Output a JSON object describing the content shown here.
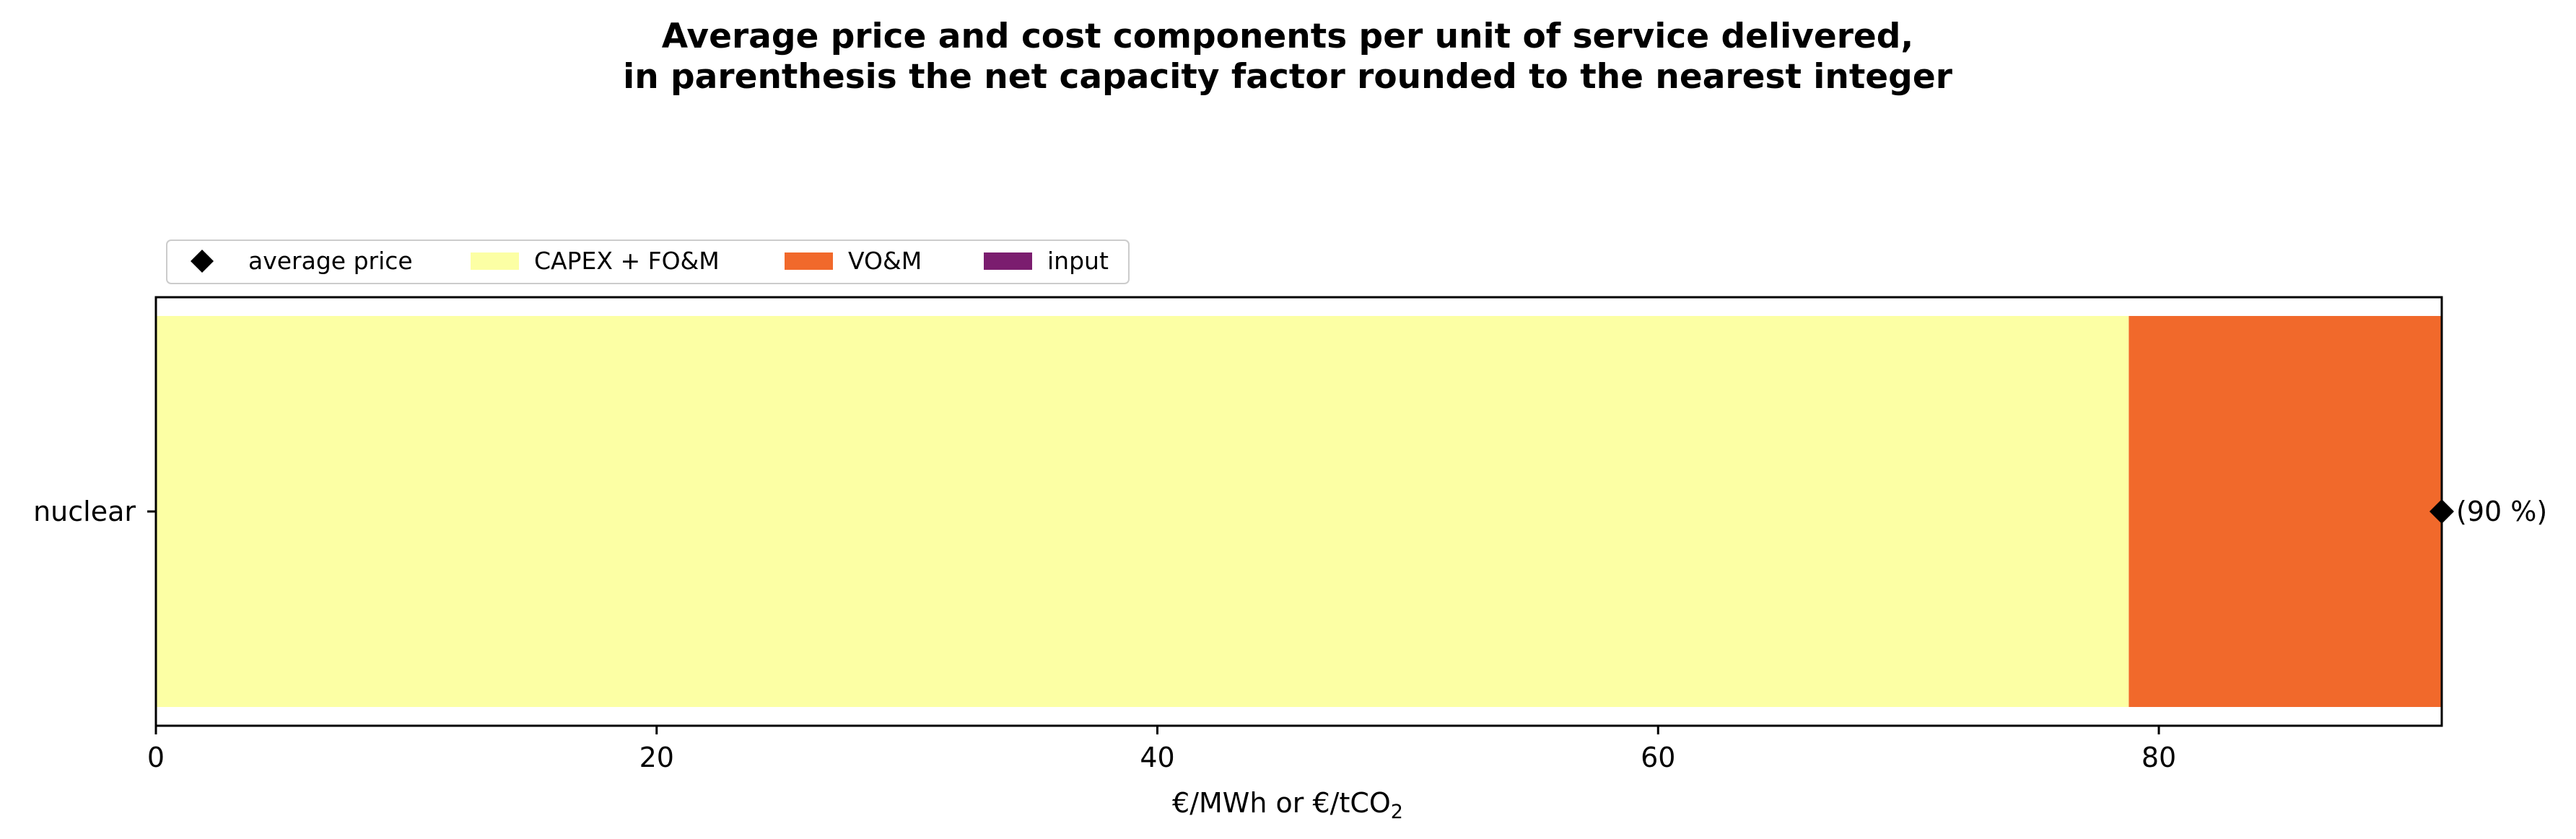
{
  "chart_data": {
    "type": "bar",
    "orientation": "horizontal",
    "stacked": true,
    "title": [
      "Average price and cost components per unit of service delivered,",
      "in parenthesis the net capacity factor rounded to the nearest integer"
    ],
    "xlabel": {
      "prefix": "€/MWh or €/tCO",
      "subscript": "2"
    },
    "ylabel": "",
    "categories": [
      "nuclear"
    ],
    "series": [
      {
        "name": "CAPEX + FO&M",
        "color": "#fcffa4",
        "values": [
          78.8
        ]
      },
      {
        "name": "VO&M",
        "color": "#f1692b",
        "values": [
          12.5
        ]
      },
      {
        "name": "input",
        "color": "#7b1d6f",
        "values": [
          0
        ]
      }
    ],
    "average_price": {
      "name": "average price",
      "marker": "diamond",
      "color": "#000000",
      "values": [
        91.3
      ]
    },
    "annotations": [
      "(90 %)"
    ],
    "xlim": [
      0,
      91.3
    ],
    "xticks": [
      0,
      20,
      40,
      60,
      80
    ],
    "grid": false,
    "legend": {
      "placement": "top-left-outside",
      "order": [
        "average price",
        "CAPEX + FO&M",
        "VO&M",
        "input"
      ]
    }
  }
}
